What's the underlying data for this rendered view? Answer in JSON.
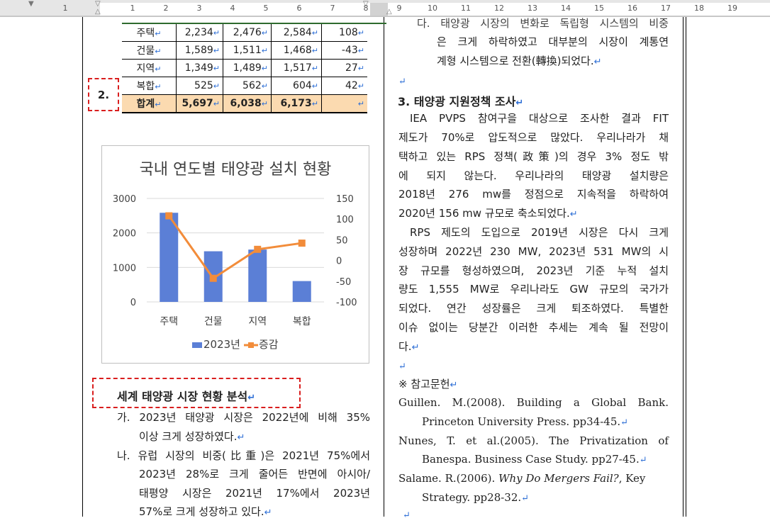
{
  "ruler": {
    "numbers": [
      "1",
      "1",
      "2",
      "3",
      "4",
      "5",
      "6",
      "7",
      "8",
      "9",
      "10",
      "11",
      "12",
      "13",
      "14",
      "15",
      "16",
      "17",
      "18",
      "19"
    ]
  },
  "table": {
    "rows": [
      {
        "label": "주택",
        "c1": "2,234",
        "c2": "2,476",
        "c3": "2,584",
        "c4": "108"
      },
      {
        "label": "건물",
        "c1": "1,589",
        "c2": "1,511",
        "c3": "1,468",
        "c4": "-43"
      },
      {
        "label": "지역",
        "c1": "1,349",
        "c2": "1,489",
        "c3": "1,517",
        "c4": "27"
      },
      {
        "label": "복합",
        "c1": "525",
        "c2": "562",
        "c3": "604",
        "c4": "42"
      }
    ],
    "total": {
      "label": "합계",
      "c1": "5,697",
      "c2": "6,038",
      "c3": "6,173",
      "c4": ""
    }
  },
  "label_box": "2.",
  "chart_data": {
    "type": "bar",
    "title": "국내 연도별 태양광 설치 현황",
    "categories": [
      "주택",
      "건물",
      "지역",
      "복합"
    ],
    "series": [
      {
        "name": "2023년",
        "type": "bar",
        "axis": "left",
        "values": [
          2584,
          1468,
          1517,
          604
        ],
        "color": "#5b7fd6"
      },
      {
        "name": "증감",
        "type": "line",
        "axis": "right",
        "values": [
          108,
          -43,
          27,
          42
        ],
        "color": "#f28c3a"
      }
    ],
    "y_left": {
      "ticks": [
        "3000",
        "2000",
        "1000",
        "0"
      ],
      "range": [
        0,
        3000
      ]
    },
    "y_right": {
      "ticks": [
        "150",
        "100",
        "50",
        "0",
        "-50",
        "-100"
      ],
      "range": [
        -100,
        150
      ]
    },
    "legend": "bottom"
  },
  "left_section": {
    "heading": "세계 태양광 시장 현황 분석",
    "items": [
      {
        "lines": [
          "가. 2023년 태양광 시장은 2022년에 비해 35%",
          "이상 크게 성장하였다."
        ]
      },
      {
        "lines": [
          "나. 유럽 시장의 비중(比重)은 2021년 75%에서",
          "2023년 28%로 크게 줄어든 반면에 아시아/",
          "태평양 시장은 2021년 17%에서 2023년",
          "57%로 크게 성장하고 있다."
        ]
      }
    ]
  },
  "right_top": {
    "lines": [
      "다. 태양광 시장의 변화로 독립형 시스템의 비중",
      "은 크게 하락하였고 대부분의 시장이 계통연",
      "계형 시스템으로 전환(轉換)되었다."
    ]
  },
  "right_section": {
    "heading": "3. 태양광 지원정책 조사",
    "para1": [
      "IEA PVPS 참여구을 대상으로 조사한 결과 FIT",
      "제도가 70%로 압도적으로 많았다. 우리나라가 채",
      "택하고 있는 RPS 정책(政策)의 경우 3% 정도 밖",
      "에 되지 않는다. 우리나라의 태양광 설치량은",
      "2018년 276 mw를 정점으로 지속적을 하락하여",
      "2020년 156 mw 규모로 축소되었다."
    ],
    "para2": [
      "RPS 제도의 도입으로 2019년 시장은 다시 크게",
      "성장하며 2022년 230 MW, 2023년 531 MW의 시",
      "장 규모를 형성하였으며, 2023년 기준 누적 설치",
      "량도 1,555 MW로 우리나라도 GW 규모의 국가가",
      "되었다. 연간 성장률은 크게 퇴조하였다. 특별한",
      "이슈 없이는 당분간 이러한 추세는 계속 될 전망이",
      "다."
    ],
    "refs_title": "※ 참고문헌",
    "refs": [
      {
        "first": "Guillen. M.(2008). Building a Global Bank.",
        "second": "Princeton University Press. pp34-45."
      },
      {
        "first": "Nunes, T. et al.(2005). The Privatization of",
        "second": "Banespa. Business Case Study. pp27-45."
      },
      {
        "first_a": "Salame. R.(2006). ",
        "first_i": "Why Do Mergers Fail?",
        "first_b": ", Key",
        "second": "Strategy. pp28-32."
      }
    ]
  }
}
